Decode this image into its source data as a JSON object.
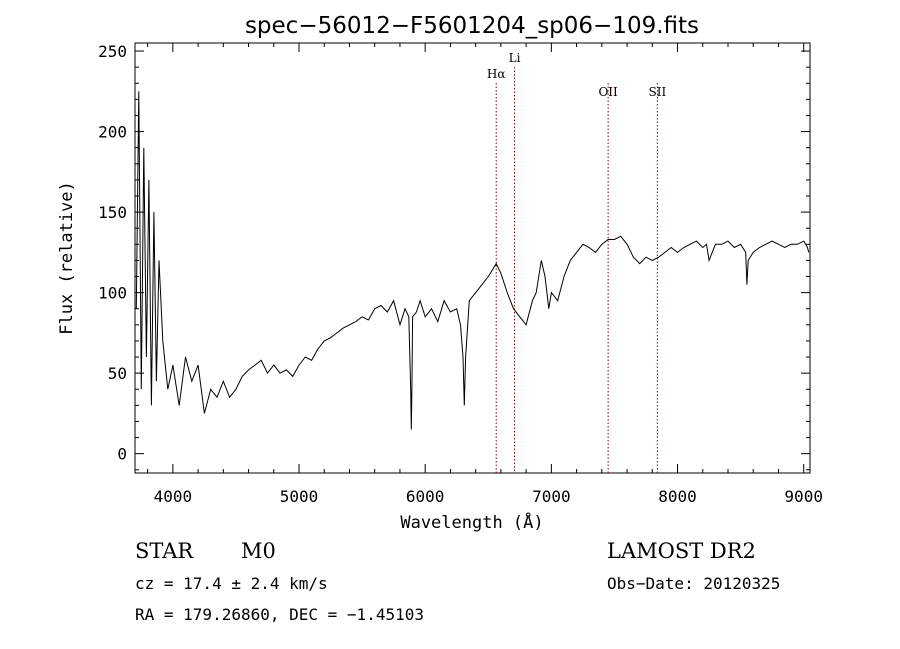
{
  "chart_data": {
    "type": "line",
    "title": "spec−56012−F5601204_sp06−109.fits",
    "xlabel": "Wavelength (Å)",
    "ylabel": "Flux (relative)",
    "xlim": [
      3700,
      9050
    ],
    "ylim": [
      -12,
      255
    ],
    "x_ticks": [
      4000,
      5000,
      6000,
      7000,
      8000,
      9000
    ],
    "y_ticks": [
      0,
      50,
      100,
      150,
      200,
      250
    ],
    "x_tick_labels": [
      "4000",
      "5000",
      "6000",
      "7000",
      "8000",
      "9000"
    ],
    "y_tick_labels": [
      "0",
      "50",
      "100",
      "150",
      "200",
      "250"
    ],
    "grid": false,
    "line_color": "#000000",
    "marker_color": "#8b0000",
    "x": [
      3710,
      3730,
      3750,
      3770,
      3790,
      3810,
      3830,
      3850,
      3870,
      3890,
      3920,
      3960,
      4000,
      4050,
      4100,
      4150,
      4200,
      4250,
      4300,
      4350,
      4400,
      4450,
      4500,
      4550,
      4600,
      4650,
      4700,
      4750,
      4800,
      4850,
      4900,
      4950,
      5000,
      5050,
      5100,
      5150,
      5200,
      5250,
      5300,
      5350,
      5400,
      5450,
      5500,
      5550,
      5600,
      5650,
      5700,
      5750,
      5800,
      5840,
      5870,
      5885,
      5890,
      5895,
      5900,
      5930,
      5960,
      6000,
      6050,
      6100,
      6150,
      6200,
      6250,
      6280,
      6300,
      6310,
      6320,
      6350,
      6400,
      6450,
      6500,
      6540,
      6563,
      6600,
      6650,
      6700,
      6750,
      6800,
      6850,
      6880,
      6920,
      6950,
      6980,
      7000,
      7050,
      7100,
      7150,
      7200,
      7250,
      7300,
      7350,
      7400,
      7450,
      7500,
      7550,
      7600,
      7650,
      7700,
      7750,
      7800,
      7850,
      7900,
      7950,
      8000,
      8050,
      8100,
      8150,
      8200,
      8230,
      8250,
      8300,
      8350,
      8400,
      8450,
      8500,
      8540,
      8550,
      8560,
      8600,
      8650,
      8700,
      8750,
      8800,
      8850,
      8900,
      8950,
      9000,
      9030,
      9040
    ],
    "y": [
      90,
      225,
      40,
      190,
      60,
      170,
      30,
      150,
      45,
      120,
      70,
      40,
      55,
      30,
      60,
      45,
      55,
      25,
      40,
      35,
      45,
      35,
      40,
      48,
      52,
      55,
      58,
      50,
      55,
      50,
      52,
      48,
      55,
      60,
      58,
      65,
      70,
      72,
      75,
      78,
      80,
      82,
      85,
      83,
      90,
      92,
      88,
      95,
      80,
      90,
      85,
      40,
      15,
      40,
      85,
      88,
      95,
      85,
      90,
      82,
      95,
      88,
      90,
      80,
      60,
      30,
      60,
      95,
      100,
      105,
      110,
      115,
      118,
      112,
      100,
      90,
      85,
      80,
      95,
      100,
      120,
      110,
      90,
      100,
      95,
      110,
      120,
      125,
      130,
      128,
      125,
      130,
      133,
      133,
      135,
      130,
      122,
      118,
      122,
      120,
      122,
      125,
      128,
      125,
      128,
      130,
      132,
      128,
      130,
      120,
      130,
      130,
      132,
      128,
      130,
      125,
      105,
      120,
      125,
      128,
      130,
      132,
      130,
      128,
      130,
      130,
      132,
      128,
      125
    ],
    "lines": [
      {
        "label": "Hα",
        "x": 6563
      },
      {
        "label": "Li",
        "x": 6708
      },
      {
        "label": "OII",
        "x": 7450
      },
      {
        "label": "SII",
        "x": 7840
      }
    ]
  },
  "annotations": {
    "object_class": "STAR",
    "subclass": "M0",
    "survey": "LAMOST DR2",
    "redshift": "cz = 17.4 ± 2.4 km/s",
    "obs_date": "Obs−Date: 20120325",
    "coords": "RA = 179.26860, DEC =  −1.45103"
  }
}
